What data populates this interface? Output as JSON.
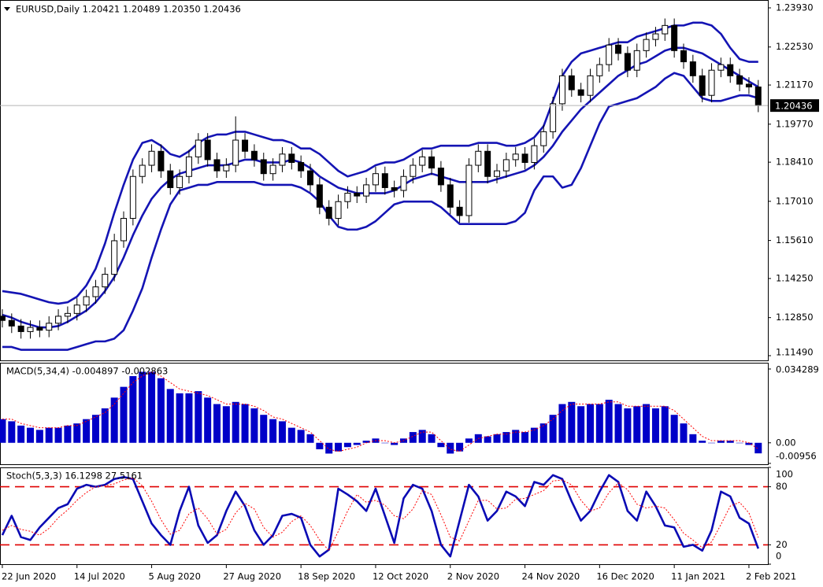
{
  "chart_data": [
    {
      "type": "candlestick",
      "title": "EURUSD,Daily 1.20421 1.20489 1.20350 1.20436",
      "xlim": [
        -0.25,
        82.03
      ],
      "ylim": [
        1.11321,
        1.24211
      ],
      "yticks": [
        {
          "value": 1.2393,
          "label": "1.23930"
        },
        {
          "value": 1.2253,
          "label": "1.22530"
        },
        {
          "value": 1.2117,
          "label": "1.21170"
        },
        {
          "value": 1.1977,
          "label": "1.19770"
        },
        {
          "value": 1.1841,
          "label": "1.18410"
        },
        {
          "value": 1.1701,
          "label": "1.17010"
        },
        {
          "value": 1.1561,
          "label": "1.15610"
        },
        {
          "value": 1.1425,
          "label": "1.14250"
        },
        {
          "value": 1.1285,
          "label": "1.12850"
        },
        {
          "value": 1.1149,
          "label": "1.11490"
        }
      ],
      "last_price": 1.20436,
      "color_up": "#ffffff",
      "color_down": "#000000",
      "band_color": "#1414b4",
      "open": [
        1.129,
        1.1275,
        1.1255,
        1.1235,
        1.125,
        1.124,
        1.1265,
        1.129,
        1.13,
        1.133,
        1.136,
        1.1395,
        1.144,
        1.156,
        1.164,
        1.179,
        1.183,
        1.188,
        1.181,
        1.175,
        1.179,
        1.186,
        1.192,
        1.185,
        1.181,
        1.183,
        1.192,
        1.188,
        1.185,
        1.18,
        1.183,
        1.187,
        1.184,
        1.181,
        1.176,
        1.168,
        1.164,
        1.17,
        1.173,
        1.172,
        1.176,
        1.18,
        1.175,
        1.174,
        1.179,
        1.183,
        1.186,
        1.182,
        1.176,
        1.168,
        1.165,
        1.183,
        1.188,
        1.179,
        1.181,
        1.185,
        1.187,
        1.184,
        1.19,
        1.195,
        1.205,
        1.215,
        1.21,
        1.208,
        1.215,
        1.219,
        1.226,
        1.223,
        1.217,
        1.224,
        1.228,
        1.23,
        1.233,
        1.224,
        1.22,
        1.215,
        1.208,
        1.217,
        1.219,
        1.215,
        1.212,
        1.211
      ],
      "high": [
        1.1315,
        1.13,
        1.128,
        1.1275,
        1.1275,
        1.129,
        1.1315,
        1.1325,
        1.1355,
        1.1385,
        1.142,
        1.1465,
        1.1585,
        1.1665,
        1.1815,
        1.1855,
        1.1905,
        1.1905,
        1.1835,
        1.1815,
        1.1885,
        1.1945,
        1.1945,
        1.1875,
        1.1855,
        1.2005,
        1.1945,
        1.1905,
        1.1875,
        1.1855,
        1.1895,
        1.1895,
        1.1865,
        1.1835,
        1.1785,
        1.1705,
        1.1725,
        1.1755,
        1.1755,
        1.1785,
        1.1825,
        1.1825,
        1.1775,
        1.1815,
        1.1855,
        1.1885,
        1.1885,
        1.1845,
        1.1785,
        1.1705,
        1.1855,
        1.1905,
        1.1905,
        1.1835,
        1.1875,
        1.1895,
        1.1895,
        1.1925,
        1.1975,
        1.2075,
        1.2175,
        1.2175,
        1.2125,
        1.2175,
        1.2215,
        1.2285,
        1.2285,
        1.2255,
        1.2265,
        1.2305,
        1.2325,
        1.2355,
        1.2355,
        1.2265,
        1.2225,
        1.2175,
        1.2195,
        1.2215,
        1.2215,
        1.2175,
        1.2145,
        1.2135
      ],
      "low": [
        1.125,
        1.123,
        1.121,
        1.121,
        1.1215,
        1.1215,
        1.124,
        1.1265,
        1.1275,
        1.1305,
        1.1335,
        1.137,
        1.1415,
        1.1535,
        1.1615,
        1.1765,
        1.1805,
        1.1785,
        1.1725,
        1.1725,
        1.1765,
        1.1835,
        1.1825,
        1.1785,
        1.1785,
        1.1805,
        1.1855,
        1.1825,
        1.1775,
        1.1775,
        1.1805,
        1.1815,
        1.1785,
        1.1735,
        1.1655,
        1.1615,
        1.1615,
        1.1675,
        1.1695,
        1.1695,
        1.1735,
        1.1725,
        1.1715,
        1.1715,
        1.1765,
        1.1805,
        1.1795,
        1.1735,
        1.1655,
        1.1625,
        1.1625,
        1.1805,
        1.1765,
        1.1765,
        1.1785,
        1.1825,
        1.1815,
        1.1815,
        1.1875,
        1.1925,
        1.2025,
        1.2075,
        1.2055,
        1.2055,
        1.2125,
        1.2165,
        1.2205,
        1.2145,
        1.2145,
        1.2215,
        1.2255,
        1.2275,
        1.2215,
        1.2175,
        1.2125,
        1.2055,
        1.2055,
        1.2145,
        1.2125,
        1.2095,
        1.2085,
        1.202
      ],
      "close": [
        1.1275,
        1.1255,
        1.1235,
        1.125,
        1.124,
        1.1265,
        1.129,
        1.13,
        1.133,
        1.136,
        1.1395,
        1.144,
        1.156,
        1.164,
        1.179,
        1.183,
        1.188,
        1.181,
        1.175,
        1.179,
        1.186,
        1.192,
        1.185,
        1.181,
        1.183,
        1.192,
        1.188,
        1.185,
        1.18,
        1.183,
        1.187,
        1.184,
        1.181,
        1.176,
        1.168,
        1.164,
        1.17,
        1.173,
        1.172,
        1.176,
        1.18,
        1.175,
        1.174,
        1.179,
        1.183,
        1.186,
        1.182,
        1.176,
        1.168,
        1.165,
        1.183,
        1.188,
        1.179,
        1.181,
        1.185,
        1.187,
        1.184,
        1.19,
        1.195,
        1.205,
        1.215,
        1.21,
        1.208,
        1.215,
        1.219,
        1.226,
        1.223,
        1.217,
        1.224,
        1.228,
        1.23,
        1.233,
        1.224,
        1.22,
        1.215,
        1.208,
        1.217,
        1.219,
        1.215,
        1.212,
        1.211,
        1.20436
      ],
      "bands": [
        {
          "values": [
            1.138,
            1.1375,
            1.137,
            1.136,
            1.135,
            1.134,
            1.1335,
            1.134,
            1.136,
            1.14,
            1.146,
            1.155,
            1.166,
            1.176,
            1.185,
            1.191,
            1.192,
            1.19,
            1.187,
            1.186,
            1.188,
            1.191,
            1.193,
            1.194,
            1.194,
            1.195,
            1.195,
            1.194,
            1.193,
            1.192,
            1.192,
            1.191,
            1.189,
            1.189,
            1.187,
            1.184,
            1.181,
            1.179,
            1.18,
            1.181,
            1.183,
            1.184,
            1.184,
            1.185,
            1.187,
            1.189,
            1.189,
            1.19,
            1.19,
            1.19,
            1.19,
            1.191,
            1.191,
            1.191,
            1.19,
            1.19,
            1.191,
            1.193,
            1.197,
            1.206,
            1.215,
            1.22,
            1.223,
            1.224,
            1.225,
            1.226,
            1.227,
            1.227,
            1.229,
            1.23,
            1.231,
            1.232,
            1.233,
            1.233,
            1.234,
            1.234,
            1.233,
            1.23,
            1.225,
            1.221,
            1.22,
            1.22
          ]
        },
        {
          "values": [
            1.1295,
            1.1285,
            1.127,
            1.126,
            1.125,
            1.125,
            1.1255,
            1.127,
            1.129,
            1.131,
            1.134,
            1.138,
            1.143,
            1.15,
            1.158,
            1.165,
            1.171,
            1.175,
            1.178,
            1.18,
            1.181,
            1.182,
            1.183,
            1.183,
            1.183,
            1.184,
            1.185,
            1.185,
            1.184,
            1.184,
            1.184,
            1.185,
            1.184,
            1.182,
            1.179,
            1.177,
            1.175,
            1.174,
            1.173,
            1.173,
            1.173,
            1.173,
            1.174,
            1.176,
            1.178,
            1.179,
            1.18,
            1.179,
            1.178,
            1.177,
            1.177,
            1.177,
            1.177,
            1.178,
            1.179,
            1.18,
            1.181,
            1.183,
            1.186,
            1.19,
            1.195,
            1.199,
            1.203,
            1.206,
            1.209,
            1.212,
            1.215,
            1.217,
            1.219,
            1.22,
            1.222,
            1.224,
            1.225,
            1.225,
            1.224,
            1.223,
            1.221,
            1.219,
            1.217,
            1.215,
            1.213,
            1.211
          ]
        },
        {
          "values": [
            1.118,
            1.118,
            1.117,
            1.117,
            1.117,
            1.117,
            1.117,
            1.117,
            1.118,
            1.119,
            1.12,
            1.12,
            1.121,
            1.124,
            1.131,
            1.139,
            1.15,
            1.16,
            1.169,
            1.174,
            1.175,
            1.176,
            1.176,
            1.177,
            1.177,
            1.177,
            1.177,
            1.177,
            1.176,
            1.176,
            1.176,
            1.176,
            1.175,
            1.173,
            1.17,
            1.165,
            1.161,
            1.16,
            1.16,
            1.161,
            1.163,
            1.166,
            1.169,
            1.17,
            1.17,
            1.17,
            1.17,
            1.168,
            1.165,
            1.162,
            1.162,
            1.162,
            1.162,
            1.162,
            1.162,
            1.163,
            1.166,
            1.174,
            1.179,
            1.179,
            1.175,
            1.176,
            1.182,
            1.19,
            1.198,
            1.204,
            1.205,
            1.206,
            1.207,
            1.209,
            1.211,
            1.214,
            1.216,
            1.215,
            1.211,
            1.207,
            1.206,
            1.206,
            1.207,
            1.208,
            1.208,
            1.207
          ]
        }
      ]
    },
    {
      "type": "bar",
      "title": "MACD(5,34,4) -0.004897 -0.002863",
      "xlim": [
        -0.25,
        82.03
      ],
      "ylim": [
        -0.00996,
        0.0372
      ],
      "yticks": [
        0.034289,
        {
          "value": 0,
          "label": "0.00"
        },
        -0.00956
      ],
      "series": [
        {
          "type": "bar",
          "color": "#0000c8",
          "values": [
            0.011,
            0.01,
            0.008,
            0.007,
            0.006,
            0.007,
            0.007,
            0.008,
            0.009,
            0.011,
            0.013,
            0.016,
            0.021,
            0.026,
            0.031,
            0.033,
            0.033,
            0.03,
            0.025,
            0.023,
            0.023,
            0.024,
            0.021,
            0.018,
            0.017,
            0.019,
            0.018,
            0.016,
            0.013,
            0.011,
            0.01,
            0.007,
            0.006,
            0.004,
            -0.003,
            -0.005,
            -0.004,
            -0.002,
            -0.001,
            0.001,
            0.002,
            0.0,
            -0.001,
            0.002,
            0.005,
            0.006,
            0.004,
            -0.002,
            -0.005,
            -0.004,
            0.002,
            0.004,
            0.003,
            0.004,
            0.005,
            0.006,
            0.005,
            0.007,
            0.009,
            0.013,
            0.018,
            0.019,
            0.017,
            0.018,
            0.018,
            0.02,
            0.018,
            0.016,
            0.017,
            0.018,
            0.016,
            0.017,
            0.013,
            0.009,
            0.004,
            0.001,
            0.0,
            0.001,
            0.001,
            0.0,
            -0.001,
            -0.004897
          ]
        },
        {
          "type": "line",
          "color": "#ff0000",
          "dashed": true,
          "values": [
            0.011,
            0.011,
            0.009,
            0.008,
            0.007,
            0.007,
            0.007,
            0.008,
            0.008,
            0.01,
            0.012,
            0.014,
            0.018,
            0.023,
            0.028,
            0.031,
            0.033,
            0.031,
            0.028,
            0.025,
            0.024,
            0.023,
            0.022,
            0.02,
            0.018,
            0.018,
            0.018,
            0.017,
            0.015,
            0.012,
            0.011,
            0.009,
            0.007,
            0.005,
            0.001,
            -0.003,
            -0.004,
            -0.003,
            -0.002,
            0.0,
            0.001,
            0.001,
            0.0,
            0.001,
            0.003,
            0.005,
            0.005,
            0.001,
            -0.003,
            -0.004,
            -0.001,
            0.002,
            0.003,
            0.004,
            0.004,
            0.005,
            0.005,
            0.006,
            0.008,
            0.011,
            0.015,
            0.018,
            0.018,
            0.018,
            0.018,
            0.019,
            0.019,
            0.017,
            0.017,
            0.017,
            0.017,
            0.017,
            0.015,
            0.011,
            0.007,
            0.003,
            0.001,
            0.001,
            0.001,
            0.001,
            0.0,
            -0.002863
          ]
        }
      ]
    },
    {
      "type": "line",
      "title": "Stoch(5,3,3) 16.1298 27.5161",
      "xlim": [
        -0.25,
        82.03
      ],
      "ylim": [
        0,
        100
      ],
      "yticks": [
        100,
        80,
        20,
        0
      ],
      "levels": [
        80,
        20
      ],
      "level_color": "#e00000",
      "xticks": [
        {
          "value": 0,
          "label": "22 Jun 2020"
        },
        {
          "value": 8,
          "label": "14 Jul 2020"
        },
        {
          "value": 16,
          "label": "5 Aug 2020"
        },
        {
          "value": 24,
          "label": "27 Aug 2020"
        },
        {
          "value": 32,
          "label": "18 Sep 2020"
        },
        {
          "value": 40,
          "label": "12 Oct 2020"
        },
        {
          "value": 48,
          "label": "2 Nov 2020"
        },
        {
          "value": 56,
          "label": "24 Nov 2020"
        },
        {
          "value": 64,
          "label": "16 Dec 2020"
        },
        {
          "value": 72,
          "label": "11 Jan 2021"
        },
        {
          "value": 80,
          "label": "2 Feb 2021"
        }
      ],
      "series": [
        {
          "type": "line",
          "color": "#0a0ab4",
          "dashed": false,
          "values": [
            30,
            50,
            28,
            25,
            38,
            48,
            58,
            62,
            78,
            82,
            80,
            82,
            88,
            90,
            88,
            65,
            42,
            30,
            20,
            55,
            80,
            40,
            22,
            30,
            55,
            75,
            60,
            35,
            20,
            30,
            50,
            52,
            48,
            20,
            8,
            15,
            78,
            72,
            65,
            55,
            78,
            50,
            22,
            68,
            82,
            78,
            55,
            20,
            8,
            45,
            82,
            70,
            45,
            55,
            75,
            70,
            60,
            85,
            82,
            92,
            88,
            65,
            45,
            55,
            75,
            92,
            85,
            55,
            45,
            75,
            60,
            40,
            38,
            18,
            20,
            14,
            35,
            75,
            70,
            48,
            42,
            16.1298
          ]
        },
        {
          "type": "line",
          "color": "#ff0000",
          "dashed": true,
          "values": [
            35,
            40,
            36,
            34,
            30,
            37,
            48,
            56,
            66,
            74,
            80,
            81,
            83,
            87,
            89,
            81,
            65,
            46,
            31,
            35,
            52,
            58,
            47,
            31,
            36,
            53,
            63,
            57,
            38,
            28,
            33,
            44,
            50,
            40,
            25,
            14,
            34,
            55,
            72,
            64,
            66,
            61,
            50,
            47,
            57,
            76,
            72,
            51,
            28,
            24,
            45,
            66,
            66,
            57,
            58,
            67,
            68,
            72,
            76,
            86,
            87,
            82,
            66,
            55,
            58,
            74,
            84,
            77,
            62,
            58,
            60,
            58,
            46,
            32,
            25,
            17,
            23,
            41,
            60,
            64,
            53,
            27.5161
          ]
        }
      ]
    }
  ]
}
